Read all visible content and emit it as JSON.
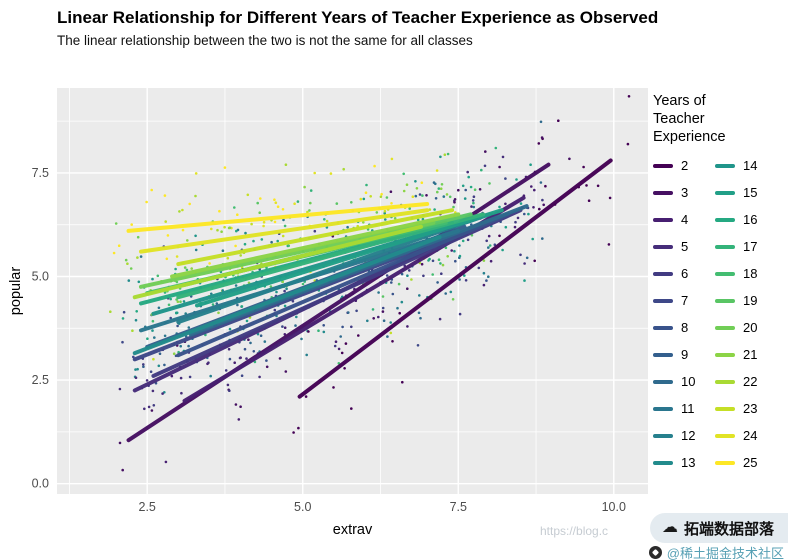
{
  "title": "Linear Relationship for Different Years of Teacher Experience as Observed",
  "subtitle": "The linear relationship between the two is not the same for all classes",
  "watermark": {
    "brand": "拓端数据部落",
    "community": "@稀土掘金技术社区",
    "url_fragment": "https://blog.c"
  },
  "chart_data": {
    "type": "scatter",
    "title": "Linear Relationship for Different Years of Teacher Experience as Observed",
    "subtitle": "The linear relationship between the two is not the same for all classes",
    "xlabel": "extrav",
    "ylabel": "popular",
    "x_ticks": [
      2.5,
      5.0,
      7.5,
      10.0
    ],
    "x_tick_labels": [
      "2.5",
      "5.0",
      "7.5",
      "10.0"
    ],
    "y_ticks": [
      0.0,
      2.5,
      5.0,
      7.5
    ],
    "y_tick_labels": [
      "0.0",
      "2.5",
      "5.0",
      "7.5"
    ],
    "x_minor": [
      1.25,
      3.75,
      6.25,
      8.75
    ],
    "y_minor": [
      1.25,
      3.75,
      6.25,
      8.75
    ],
    "x_domain": [
      1.05,
      10.55
    ],
    "y_domain": [
      -0.25,
      9.55
    ],
    "panel_bg": "#EBEBEB",
    "grid_color": "#FFFFFF",
    "legend": {
      "title_lines": [
        "Years of",
        "Teacher",
        "Experience"
      ],
      "position": "right",
      "columns": 2,
      "entries": [
        {
          "label": "2",
          "color": "#440154"
        },
        {
          "label": "3",
          "color": "#461062"
        },
        {
          "label": "4",
          "color": "#471f71"
        },
        {
          "label": "5",
          "color": "#462d7a"
        },
        {
          "label": "6",
          "color": "#423b82"
        },
        {
          "label": "7",
          "color": "#3e4888"
        },
        {
          "label": "8",
          "color": "#39538b"
        },
        {
          "label": "9",
          "color": "#335f8d"
        },
        {
          "label": "10",
          "color": "#2f6a8d"
        },
        {
          "label": "11",
          "color": "#2a768e"
        },
        {
          "label": "12",
          "color": "#26808d"
        },
        {
          "label": "13",
          "color": "#228b8c"
        },
        {
          "label": "14",
          "color": "#20958a"
        },
        {
          "label": "15",
          "color": "#219f87"
        },
        {
          "label": "16",
          "color": "#25a982"
        },
        {
          "label": "17",
          "color": "#34b37a"
        },
        {
          "label": "18",
          "color": "#43bd71"
        },
        {
          "label": "19",
          "color": "#59c564"
        },
        {
          "label": "20",
          "color": "#71ce56"
        },
        {
          "label": "21",
          "color": "#8cd446"
        },
        {
          "label": "22",
          "color": "#a9da33"
        },
        {
          "label": "23",
          "color": "#c5df26"
        },
        {
          "label": "24",
          "color": "#e1e325"
        },
        {
          "label": "25",
          "color": "#fde725"
        }
      ]
    },
    "lines": [
      {
        "year": 2,
        "x": [
          4.95,
          9.95
        ],
        "y": [
          2.1,
          7.8
        ]
      },
      {
        "year": 3,
        "x": [
          2.2,
          8.95
        ],
        "y": [
          1.05,
          7.7
        ]
      },
      {
        "year": 4,
        "x": [
          3.1,
          8.55
        ],
        "y": [
          2.0,
          6.9
        ]
      },
      {
        "year": 5,
        "x": [
          2.3,
          8.1
        ],
        "y": [
          2.25,
          6.45
        ]
      },
      {
        "year": 6,
        "x": [
          2.6,
          8.5
        ],
        "y": [
          2.6,
          6.6
        ]
      },
      {
        "year": 7,
        "x": [
          2.3,
          7.8
        ],
        "y": [
          3.0,
          6.2
        ]
      },
      {
        "year": 8,
        "x": [
          3.0,
          8.3
        ],
        "y": [
          3.1,
          6.5
        ]
      },
      {
        "year": 9,
        "x": [
          2.5,
          7.6
        ],
        "y": [
          3.3,
          6.2
        ]
      },
      {
        "year": 10,
        "x": [
          3.2,
          8.6
        ],
        "y": [
          3.6,
          6.7
        ]
      },
      {
        "year": 11,
        "x": [
          2.4,
          7.5
        ],
        "y": [
          3.7,
          6.1
        ]
      },
      {
        "year": 12,
        "x": [
          3.0,
          8.0
        ],
        "y": [
          3.9,
          6.5
        ]
      },
      {
        "year": 13,
        "x": [
          2.3,
          7.2
        ],
        "y": [
          3.15,
          5.95
        ]
      },
      {
        "year": 14,
        "x": [
          2.6,
          7.8
        ],
        "y": [
          4.1,
          6.4
        ]
      },
      {
        "year": 15,
        "x": [
          3.3,
          8.2
        ],
        "y": [
          4.3,
          6.6
        ]
      },
      {
        "year": 16,
        "x": [
          2.4,
          7.4
        ],
        "y": [
          4.35,
          6.3
        ]
      },
      {
        "year": 17,
        "x": [
          3.0,
          7.9
        ],
        "y": [
          4.5,
          6.5
        ]
      },
      {
        "year": 18,
        "x": [
          2.5,
          7.3
        ],
        "y": [
          4.6,
          6.3
        ]
      },
      {
        "year": 19,
        "x": [
          3.1,
          7.7
        ],
        "y": [
          4.8,
          6.5
        ]
      },
      {
        "year": 20,
        "x": [
          2.4,
          7.1
        ],
        "y": [
          4.75,
          6.3
        ]
      },
      {
        "year": 21,
        "x": [
          2.9,
          7.5
        ],
        "y": [
          5.0,
          6.5
        ]
      },
      {
        "year": 22,
        "x": [
          2.3,
          6.9
        ],
        "y": [
          4.5,
          6.2
        ]
      },
      {
        "year": 23,
        "x": [
          3.0,
          7.4
        ],
        "y": [
          5.3,
          6.6
        ]
      },
      {
        "year": 24,
        "x": [
          2.4,
          7.0
        ],
        "y": [
          5.6,
          6.6
        ]
      },
      {
        "year": 25,
        "x": [
          2.2,
          7.0
        ],
        "y": [
          6.1,
          6.75
        ]
      }
    ],
    "scatter": {
      "n": 780,
      "seed": 42,
      "noise_sd": 0.85,
      "point_radius": 1.3
    }
  }
}
